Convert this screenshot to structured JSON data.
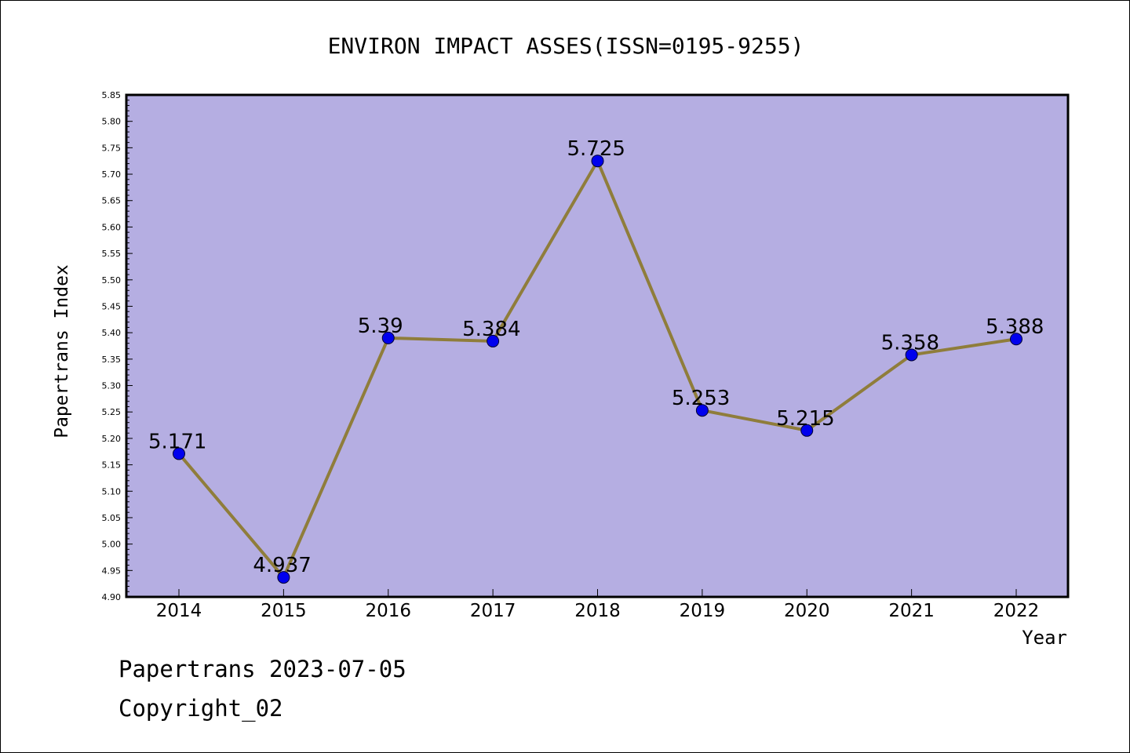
{
  "chart_data": {
    "type": "line",
    "title": "ENVIRON IMPACT ASSES(ISSN=0195-9255)",
    "xlabel": "Year",
    "ylabel": "Papertrans Index",
    "categories": [
      "2014",
      "2015",
      "2016",
      "2017",
      "2018",
      "2019",
      "2020",
      "2021",
      "2022"
    ],
    "series": [
      {
        "values": [
          5.171,
          4.937,
          5.39,
          5.384,
          5.725,
          5.253,
          5.215,
          5.358,
          5.388
        ],
        "labels": [
          "5.171",
          "4.937",
          "5.39",
          "5.384",
          "5.725",
          "5.253",
          "5.215",
          "5.358",
          "5.388"
        ]
      }
    ],
    "ylim": [
      4.9,
      5.85
    ],
    "yticks": [
      "4.90",
      "4.95",
      "5.00",
      "5.05",
      "5.10",
      "5.15",
      "5.20",
      "5.25",
      "5.30",
      "5.35",
      "5.40",
      "5.45",
      "5.50",
      "5.55",
      "5.60",
      "5.65",
      "5.70",
      "5.75",
      "5.80",
      "5.85"
    ],
    "grid": false,
    "legend": "none",
    "colors": {
      "plot_background": "#b5aee2",
      "line": "#8f7d3b",
      "marker": "#0000ee",
      "marker_edge": "#000033"
    }
  },
  "footer": {
    "date_line": "Papertrans 2023-07-05",
    "copyright": "Copyright_02"
  }
}
